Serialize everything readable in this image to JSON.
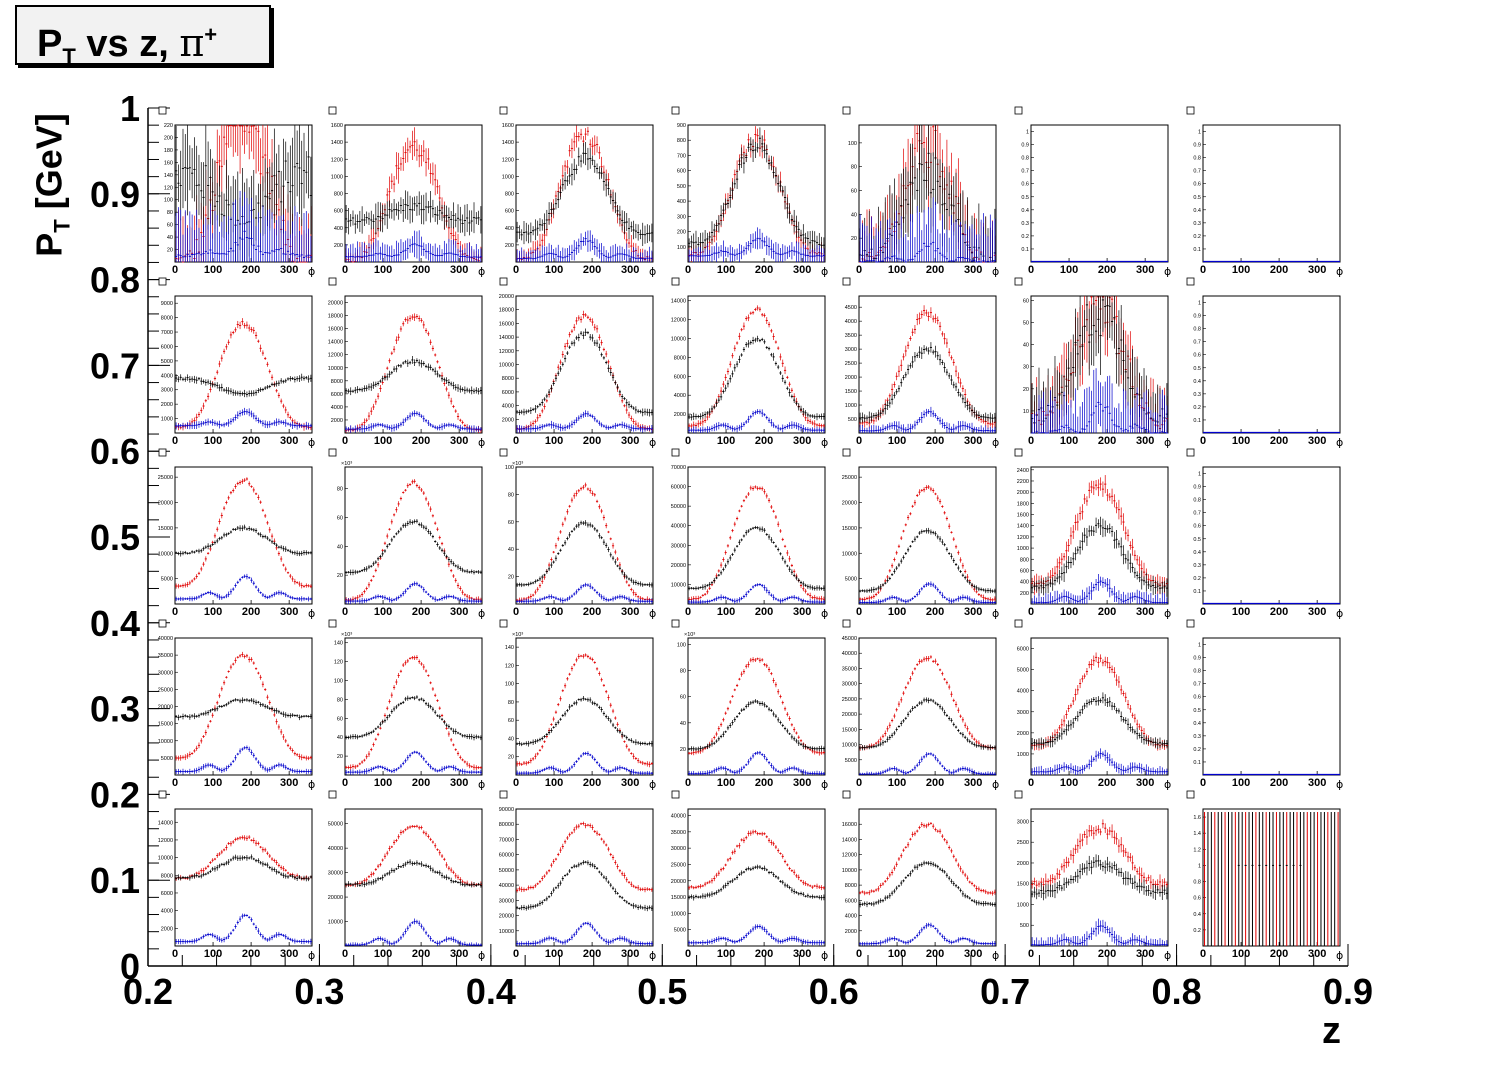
{
  "header": {
    "title_pt": "P",
    "title_sub": "T",
    "title_mid": " vs z, ",
    "title_pi": "π",
    "title_sup": "+"
  },
  "axes": {
    "y_label_main": "P",
    "y_label_sub": "T",
    "y_label_rest": " [GeV]",
    "x_label": "z",
    "panel_x_label": "ϕ"
  },
  "colors": {
    "red": "#e00000",
    "black": "#000000",
    "blue": "#0000cc"
  },
  "chart_data": {
    "type": "scatter",
    "description_free": true,
    "outer_x": {
      "label": "z",
      "range": [
        0.2,
        0.9
      ],
      "ticks": [
        "0.2",
        "0.3",
        "0.4",
        "0.5",
        "0.6",
        "0.7",
        "0.8",
        "0.9"
      ]
    },
    "outer_y": {
      "label": "P_T [GeV]",
      "range": [
        0,
        1
      ],
      "ticks": [
        "0",
        "0.1",
        "0.2",
        "0.3",
        "0.4",
        "0.5",
        "0.6",
        "0.7",
        "0.8",
        "0.9",
        "1"
      ]
    },
    "panel_x": {
      "label": "ϕ",
      "range": [
        0,
        360
      ],
      "ticks": [
        "0",
        "100",
        "200",
        "300"
      ]
    },
    "series": [
      {
        "name": "red",
        "color": "#e00000"
      },
      {
        "name": "black",
        "color": "#000000"
      },
      {
        "name": "blue",
        "color": "#0000cc"
      }
    ],
    "panels": [
      [
        {
          "ymax": 220,
          "ticks": [
            "20",
            "40",
            "60",
            "80",
            "100",
            "120",
            "140",
            "160",
            "180",
            "200",
            "220"
          ],
          "red": [
            0,
            240
          ],
          "black": [
            140,
            70
          ],
          "blue": [
            10,
            40
          ],
          "noise": 0.25
        },
        {
          "ymax": 1600,
          "ticks": [
            "200",
            "400",
            "600",
            "800",
            "1000",
            "1200",
            "1400",
            "1600"
          ],
          "red": [
            20,
            1350
          ],
          "black": [
            480,
            650
          ],
          "blue": [
            60,
            200
          ],
          "noise": 0.08
        },
        {
          "ymax": 1600,
          "ticks": [
            "200",
            "400",
            "600",
            "800",
            "1000",
            "1200",
            "1400",
            "1600"
          ],
          "red": [
            40,
            1500
          ],
          "black": [
            330,
            1200
          ],
          "blue": [
            40,
            260
          ],
          "noise": 0.06
        },
        {
          "ymax": 900,
          "ticks": [
            "100",
            "200",
            "300",
            "400",
            "500",
            "600",
            "700",
            "800",
            "900"
          ],
          "red": [
            50,
            800
          ],
          "black": [
            120,
            780
          ],
          "blue": [
            40,
            150
          ],
          "noise": 0.06
        },
        {
          "ymax": 115,
          "ticks": [
            "20",
            "40",
            "60",
            "80",
            "100"
          ],
          "red": [
            0,
            95
          ],
          "black": [
            5,
            75
          ],
          "blue": [
            0,
            15
          ],
          "noise": 0.25
        },
        {
          "empty": true,
          "ticks": [
            "0.1",
            "0.2",
            "0.3",
            "0.4",
            "0.5",
            "0.6",
            "0.7",
            "0.8",
            "0.9",
            "1"
          ]
        },
        {
          "empty": true,
          "ticks": [
            "0.1",
            "0.2",
            "0.3",
            "0.4",
            "0.5",
            "0.6",
            "0.7",
            "0.8",
            "0.9",
            "1"
          ]
        }
      ],
      [
        {
          "ymax": 9500,
          "ticks": [
            "1000",
            "2000",
            "3000",
            "4000",
            "5000",
            "6000",
            "7000",
            "8000",
            "9000"
          ],
          "red": [
            400,
            7600
          ],
          "black": [
            3800,
            2700
          ],
          "blue": [
            500,
            1500
          ],
          "noise": 0.02
        },
        {
          "ymax": 21000,
          "ticks": [
            "2000",
            "4000",
            "6000",
            "8000",
            "10000",
            "12000",
            "14000",
            "16000",
            "18000",
            "20000"
          ],
          "red": [
            400,
            18000
          ],
          "black": [
            6500,
            11000
          ],
          "blue": [
            600,
            3000
          ],
          "noise": 0.02
        },
        {
          "ymax": 20000,
          "ticks": [
            "2000",
            "4000",
            "6000",
            "8000",
            "10000",
            "12000",
            "14000",
            "16000",
            "18000",
            "20000"
          ],
          "red": [
            600,
            17000
          ],
          "black": [
            3000,
            14500
          ],
          "blue": [
            600,
            2800
          ],
          "noise": 0.02
        },
        {
          "ymax": 14500,
          "ticks": [
            "2000",
            "4000",
            "6000",
            "8000",
            "10000",
            "12000",
            "14000"
          ],
          "red": [
            800,
            13000
          ],
          "black": [
            1700,
            10000
          ],
          "blue": [
            300,
            2300
          ],
          "noise": 0.02
        },
        {
          "ymax": 4900,
          "ticks": [
            "500",
            "1000",
            "1500",
            "2000",
            "2500",
            "3000",
            "3500",
            "4000",
            "4500"
          ],
          "red": [
            350,
            4300
          ],
          "black": [
            550,
            3000
          ],
          "blue": [
            80,
            750
          ],
          "noise": 0.03
        },
        {
          "ymax": 62,
          "ticks": [
            "10",
            "20",
            "30",
            "40",
            "50",
            "60"
          ],
          "red": [
            5,
            60
          ],
          "black": [
            8,
            55
          ],
          "blue": [
            0,
            12
          ],
          "noise": 0.22
        },
        {
          "empty": true,
          "ticks": [
            "0.1",
            "0.2",
            "0.3",
            "0.4",
            "0.5",
            "0.6",
            "0.7",
            "0.8",
            "0.9",
            "1"
          ]
        }
      ],
      [
        {
          "ymax": 27000,
          "ticks": [
            "5000",
            "10000",
            "15000",
            "20000",
            "25000"
          ],
          "red": [
            3500,
            24500
          ],
          "black": [
            10000,
            15000
          ],
          "blue": [
            1000,
            5500
          ],
          "noise": 0.015
        },
        {
          "ymax": 95,
          "ticks": [
            "20",
            "40",
            "60",
            "80"
          ],
          "exp": "×10³",
          "red": [
            3,
            84
          ],
          "black": [
            22,
            57
          ],
          "blue": [
            2,
            14
          ],
          "noise": 0.015
        },
        {
          "ymax": 100,
          "ticks": [
            "20",
            "40",
            "60",
            "80",
            "100"
          ],
          "exp": "×10³",
          "red": [
            3,
            86
          ],
          "black": [
            14,
            59
          ],
          "blue": [
            2,
            14
          ],
          "noise": 0.015
        },
        {
          "ymax": 70000,
          "ticks": [
            "10000",
            "20000",
            "30000",
            "40000",
            "50000",
            "60000",
            "70000"
          ],
          "red": [
            2500,
            60000
          ],
          "black": [
            8000,
            39000
          ],
          "blue": [
            1000,
            10000
          ],
          "noise": 0.015
        },
        {
          "ymax": 27000,
          "ticks": [
            "5000",
            "10000",
            "15000",
            "20000",
            "25000"
          ],
          "red": [
            900,
            23000
          ],
          "black": [
            2600,
            14500
          ],
          "blue": [
            300,
            4000
          ],
          "noise": 0.015
        },
        {
          "ymax": 2450,
          "ticks": [
            "200",
            "400",
            "600",
            "800",
            "1000",
            "1200",
            "1400",
            "1600",
            "1800",
            "2000",
            "2200",
            "2400"
          ],
          "red": [
            350,
            2100
          ],
          "black": [
            300,
            1400
          ],
          "blue": [
            30,
            400
          ],
          "noise": 0.05
        },
        {
          "empty": true,
          "ticks": [
            "0.1",
            "0.2",
            "0.3",
            "0.4",
            "0.5",
            "0.6",
            "0.7",
            "0.8",
            "0.9",
            "1"
          ]
        }
      ],
      [
        {
          "ymax": 40000,
          "ticks": [
            "5000",
            "10000",
            "15000",
            "20000",
            "25000",
            "30000",
            "35000",
            "40000"
          ],
          "red": [
            5000,
            35000
          ],
          "black": [
            17000,
            22000
          ],
          "blue": [
            1000,
            8000
          ],
          "noise": 0.015
        },
        {
          "ymax": 145,
          "ticks": [
            "20",
            "40",
            "60",
            "80",
            "100",
            "120",
            "140"
          ],
          "exp": "×10³",
          "red": [
            8,
            125
          ],
          "black": [
            40,
            82
          ],
          "blue": [
            3,
            24
          ],
          "noise": 0.015
        },
        {
          "ymax": 150,
          "ticks": [
            "20",
            "40",
            "60",
            "80",
            "100",
            "120",
            "140"
          ],
          "exp": "×10³",
          "red": [
            12,
            132
          ],
          "black": [
            34,
            83
          ],
          "blue": [
            2,
            24
          ],
          "noise": 0.015
        },
        {
          "ymax": 105,
          "ticks": [
            "20",
            "40",
            "60",
            "80",
            "100"
          ],
          "exp": "×10³",
          "red": [
            17,
            89
          ],
          "black": [
            20,
            56
          ],
          "blue": [
            1,
            17
          ],
          "noise": 0.015
        },
        {
          "ymax": 45000,
          "ticks": [
            "5000",
            "10000",
            "15000",
            "20000",
            "25000",
            "30000",
            "35000",
            "40000",
            "45000"
          ],
          "red": [
            9000,
            38500
          ],
          "black": [
            9000,
            24500
          ],
          "blue": [
            300,
            7000
          ],
          "noise": 0.015
        },
        {
          "ymax": 6500,
          "ticks": [
            "1000",
            "2000",
            "3000",
            "4000",
            "5000",
            "6000"
          ],
          "red": [
            1400,
            5500
          ],
          "black": [
            1500,
            3600
          ],
          "blue": [
            150,
            1000
          ],
          "noise": 0.03
        },
        {
          "empty": true,
          "ticks": [
            "0.1",
            "0.2",
            "0.3",
            "0.4",
            "0.5",
            "0.6",
            "0.7",
            "0.8",
            "0.9",
            "1"
          ]
        }
      ],
      [
        {
          "ymax": 15500,
          "ticks": [
            "2000",
            "4000",
            "6000",
            "8000",
            "10000",
            "12000",
            "14000"
          ],
          "red": [
            7700,
            12300
          ],
          "black": [
            7700,
            10100
          ],
          "blue": [
            500,
            3500
          ],
          "noise": 0.015
        },
        {
          "ymax": 56000,
          "ticks": [
            "10000",
            "20000",
            "30000",
            "40000",
            "50000"
          ],
          "red": [
            25000,
            49000
          ],
          "black": [
            25000,
            34000
          ],
          "blue": [
            400,
            10000
          ],
          "noise": 0.015
        },
        {
          "ymax": 90000,
          "ticks": [
            "10000",
            "20000",
            "30000",
            "40000",
            "50000",
            "60000",
            "70000",
            "80000",
            "90000"
          ],
          "red": [
            37000,
            80000
          ],
          "black": [
            25000,
            55000
          ],
          "blue": [
            1500,
            15000
          ],
          "noise": 0.015
        },
        {
          "ymax": 42000,
          "ticks": [
            "5000",
            "10000",
            "15000",
            "20000",
            "25000",
            "30000",
            "35000",
            "40000"
          ],
          "red": [
            18000,
            35000
          ],
          "black": [
            15000,
            24000
          ],
          "blue": [
            1000,
            6000
          ],
          "noise": 0.015
        },
        {
          "ymax": 18000,
          "ticks": [
            "2000",
            "4000",
            "6000",
            "8000",
            "10000",
            "12000",
            "14000",
            "16000"
          ],
          "red": [
            7000,
            16000
          ],
          "black": [
            5500,
            11000
          ],
          "blue": [
            300,
            2800
          ],
          "noise": 0.015
        },
        {
          "ymax": 3300,
          "ticks": [
            "500",
            "1000",
            "1500",
            "2000",
            "2500",
            "3000"
          ],
          "red": [
            1500,
            2850
          ],
          "black": [
            1300,
            2000
          ],
          "blue": [
            30,
            480
          ],
          "noise": 0.04
        },
        {
          "special": "spikes",
          "ymax": 1.7,
          "ticks": [
            "0.2",
            "0.4",
            "0.6",
            "0.8",
            "1",
            "1.2",
            "1.4",
            "1.6"
          ]
        }
      ]
    ]
  }
}
